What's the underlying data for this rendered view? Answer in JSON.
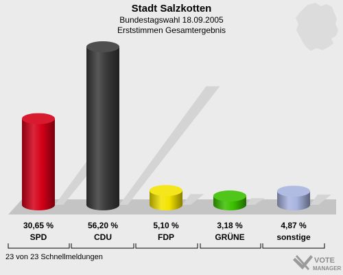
{
  "header": {
    "title": "Stadt Salzkotten",
    "subtitle_1": "Bundestagswahl 18.09.2005",
    "subtitle_2": "Erststimmen Gesamtergebnis"
  },
  "footer": {
    "text": "23 von 23 Schnellmeldungen",
    "logo_text_1": "VOTE",
    "logo_text_2": "MANAGER"
  },
  "chart_data": {
    "type": "bar",
    "title": "Stadt Salzkotten",
    "categories": [
      "SPD",
      "CDU",
      "FDP",
      "GRÜNE",
      "sonstige"
    ],
    "values": [
      30.65,
      56.2,
      5.1,
      3.18,
      4.87
    ],
    "value_labels": [
      "30,65 %",
      "56,20 %",
      "5,10 %",
      "3,18 %",
      "4,87 %"
    ],
    "colors": [
      "#d40018",
      "#3a3a3a",
      "#f3e300",
      "#3cc000",
      "#a8b4e0"
    ],
    "ylim": [
      0,
      60
    ],
    "grid": false,
    "legend": "none"
  }
}
